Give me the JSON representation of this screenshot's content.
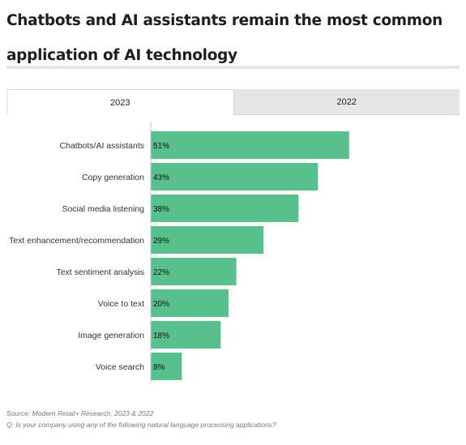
{
  "header": {
    "title": "Chatbots and AI assistants remain the most common application of AI technology"
  },
  "tabs": [
    {
      "label": "2023",
      "active": true
    },
    {
      "label": "2022",
      "active": false
    }
  ],
  "chart_data": {
    "type": "bar",
    "orientation": "horizontal",
    "categories": [
      "Chatbots/AI assistants",
      "Copy generation",
      "Social media listening",
      "Text enhancement/recommendation",
      "Text sentiment analysis",
      "Voice to text",
      "Image generation",
      "Voice search"
    ],
    "values": [
      51,
      43,
      38,
      29,
      22,
      20,
      18,
      8
    ],
    "value_labels": [
      "51%",
      "43%",
      "38%",
      "29%",
      "22%",
      "20%",
      "18%",
      "8%"
    ],
    "xlim": [
      0,
      100
    ],
    "grid": false,
    "legend": "none",
    "bar_color": "#57c08c",
    "axis_color": "#c7c7c7"
  },
  "footer": {
    "source": "Source: Modern Retail+ Research, 2023 & 2022",
    "question": "Q: Is your company using any of the following natural language processing applications?"
  }
}
